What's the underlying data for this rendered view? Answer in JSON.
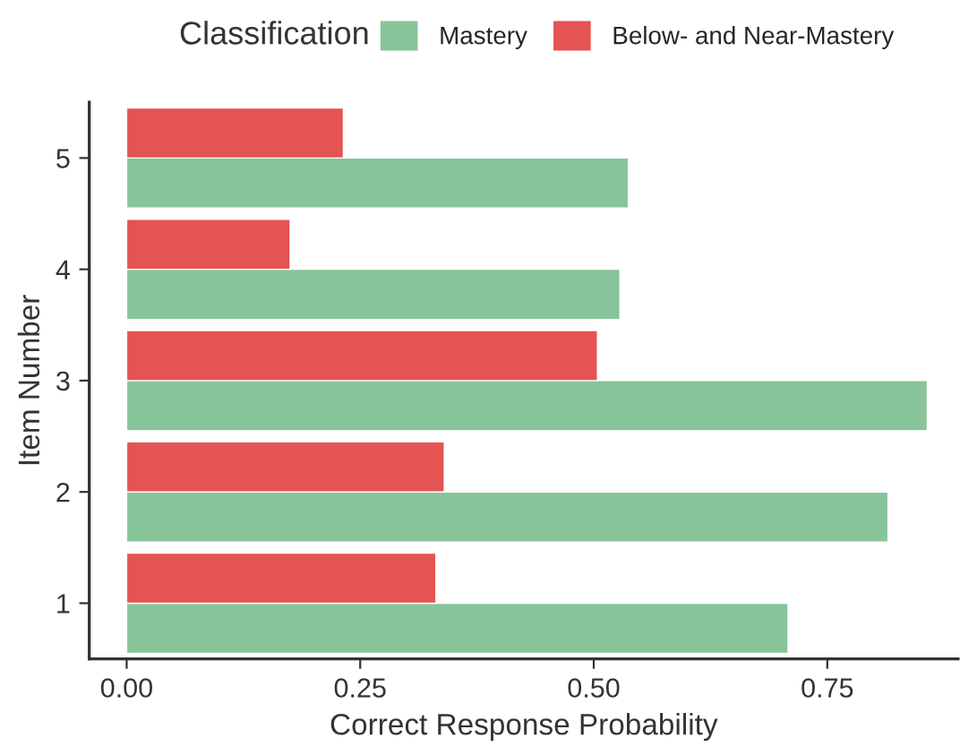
{
  "chart_data": {
    "type": "bar",
    "orientation": "horizontal",
    "xlabel": "Correct Response Probability",
    "ylabel": "Item Number",
    "legend_title": "Classification",
    "legend": "top",
    "categories": [
      "5",
      "4",
      "3",
      "2",
      "1"
    ],
    "series": [
      {
        "name": "Mastery",
        "color": "#88c49a",
        "values": [
          0.537,
          0.528,
          0.857,
          0.815,
          0.708
        ]
      },
      {
        "name": "Below- and Near-Mastery",
        "color": "#e35453",
        "values": [
          0.232,
          0.175,
          0.504,
          0.34,
          0.331
        ]
      }
    ],
    "xlim": [
      -0.04,
      0.89
    ],
    "xticks": [
      {
        "value": 0,
        "label": "0.00"
      },
      0.25,
      {
        "value": 0.5,
        "label": "0.50"
      },
      0.75
    ],
    "grid": false
  }
}
